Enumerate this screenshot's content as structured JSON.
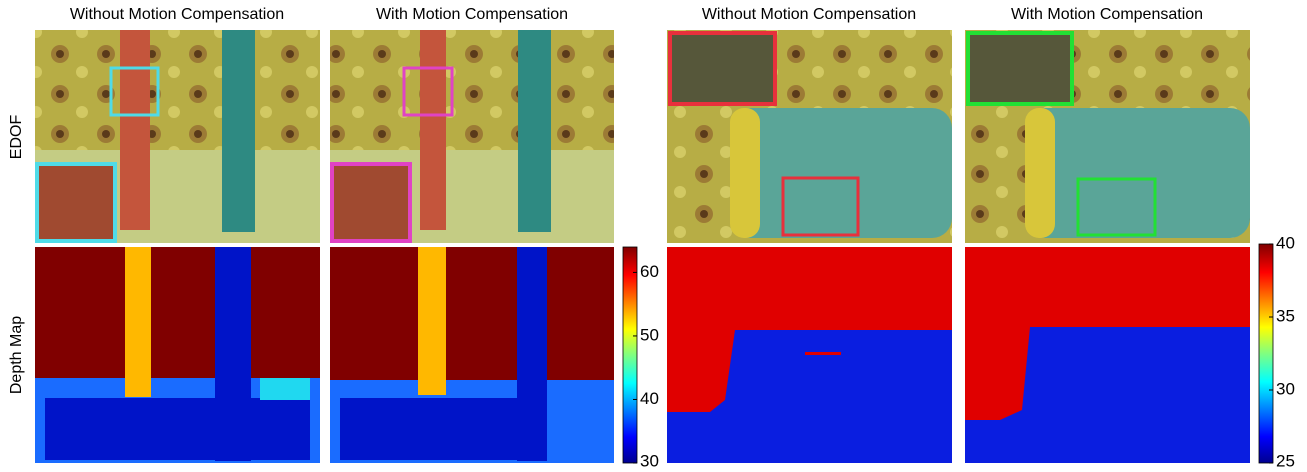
{
  "columns": [
    "Without Motion Compensation",
    "With Motion Compensation",
    "Without Motion Compensation",
    "With Motion Compensation"
  ],
  "rows": [
    "EDOF",
    "Depth Map"
  ],
  "colorbars": [
    {
      "lim": [
        30,
        64
      ],
      "ticks": [
        30,
        40,
        50,
        60
      ]
    },
    {
      "lim": [
        25,
        40
      ],
      "ticks": [
        25,
        30,
        35,
        40
      ]
    }
  ]
}
